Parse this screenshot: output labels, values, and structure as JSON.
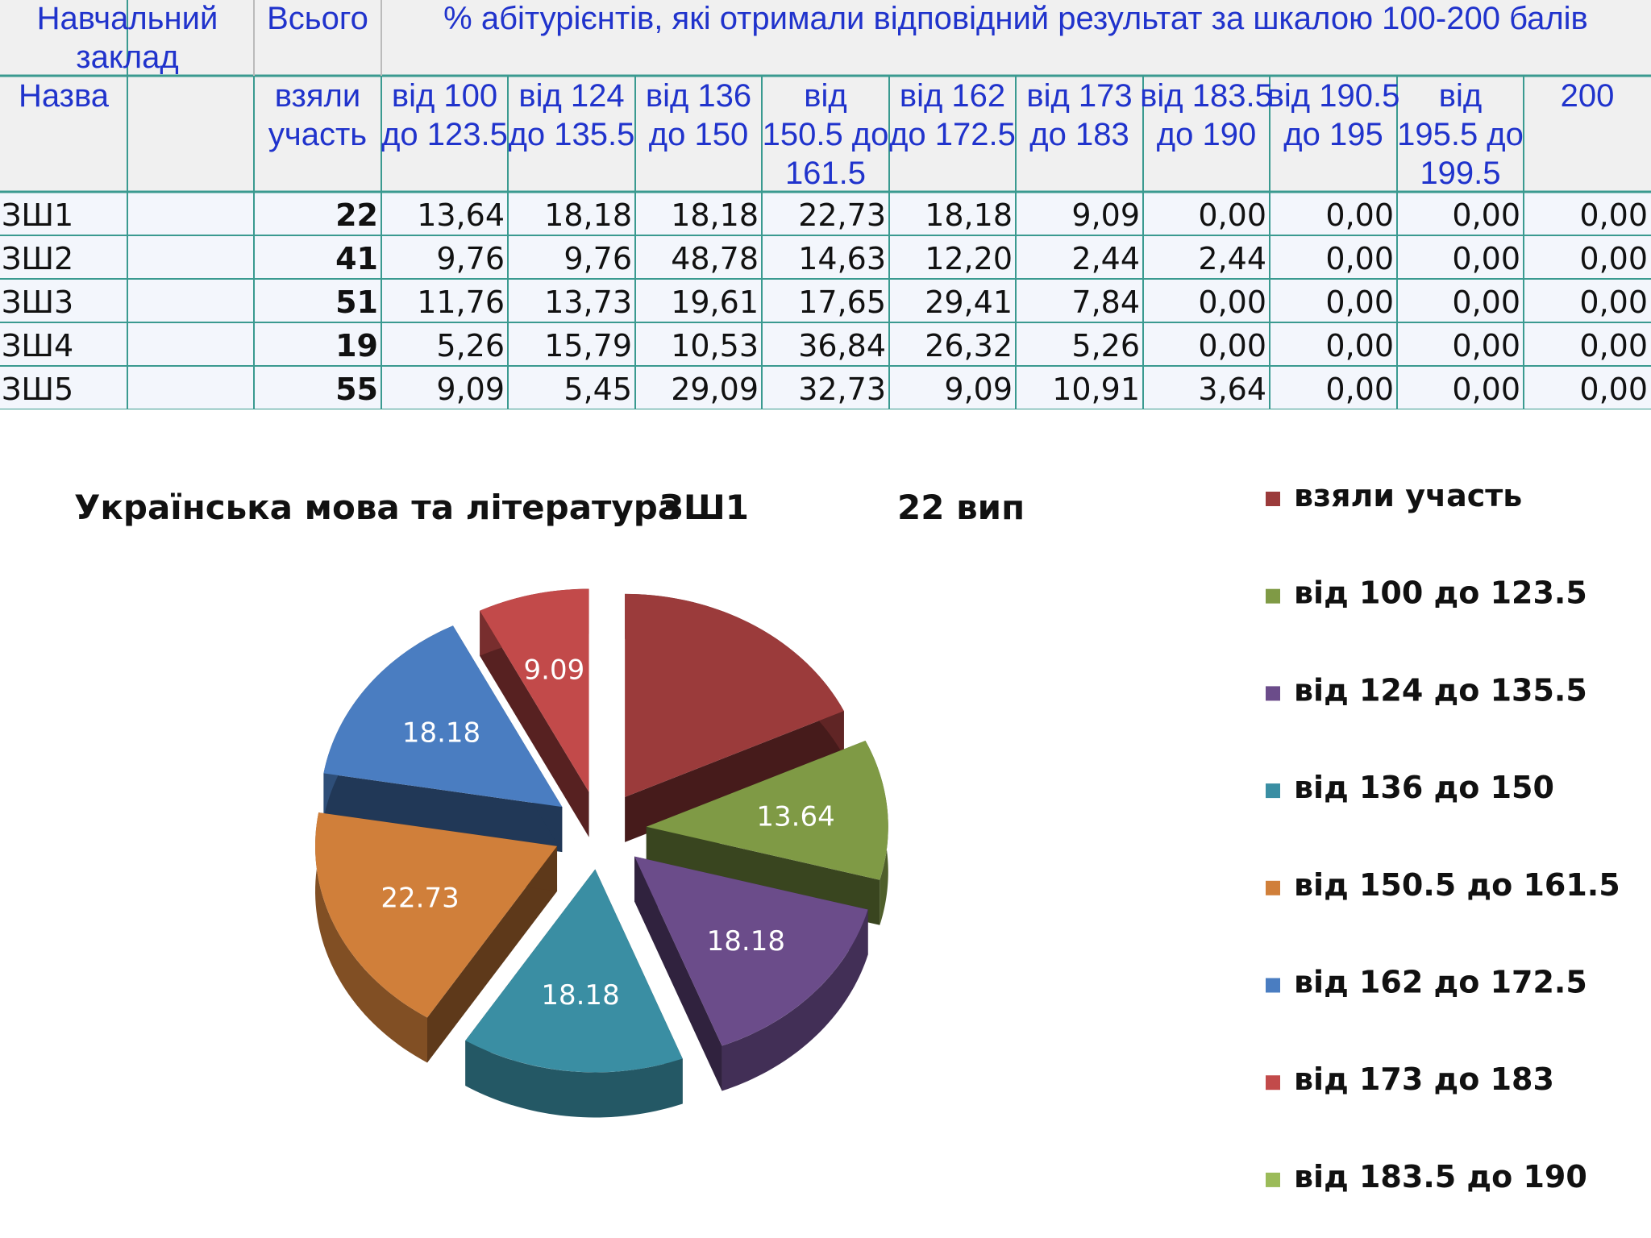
{
  "table": {
    "header": {
      "institution": "Навчальний заклад",
      "total": "Всього",
      "percent_caption": "% абітурієнтів, які отримали відповідний результат за шкалою 100-200 балів",
      "name": "Назва",
      "took_part": "взяли участь",
      "ranges": [
        "від 100 до 123.5",
        "від 124 до 135.5",
        "від 136 до 150",
        "від 150.5 до 161.5",
        "від 162 до 172.5",
        "від 173 до 183",
        "від 183.5 до 190",
        "від 190.5 до 195",
        "від 195.5 до 199.5",
        "200"
      ]
    },
    "rows": [
      {
        "name": "ЗШ1",
        "total": "22",
        "values": [
          "13,64",
          "18,18",
          "18,18",
          "22,73",
          "18,18",
          "9,09",
          "0,00",
          "0,00",
          "0,00",
          "0,00"
        ]
      },
      {
        "name": "ЗШ2",
        "total": "41",
        "values": [
          "9,76",
          "9,76",
          "48,78",
          "14,63",
          "12,20",
          "2,44",
          "2,44",
          "0,00",
          "0,00",
          "0,00"
        ]
      },
      {
        "name": "ЗШ3",
        "total": "51",
        "values": [
          "11,76",
          "13,73",
          "19,61",
          "17,65",
          "29,41",
          "7,84",
          "0,00",
          "0,00",
          "0,00",
          "0,00"
        ]
      },
      {
        "name": "ЗШ4",
        "total": "19",
        "values": [
          "5,26",
          "15,79",
          "10,53",
          "36,84",
          "26,32",
          "5,26",
          "0,00",
          "0,00",
          "0,00",
          "0,00"
        ]
      },
      {
        "name": "ЗШ5",
        "total": "55",
        "values": [
          "9,09",
          "5,45",
          "29,09",
          "32,73",
          "9,09",
          "10,91",
          "3,64",
          "0,00",
          "0,00",
          "0,00"
        ]
      }
    ]
  },
  "chart_data": {
    "type": "pie",
    "title_parts": [
      "Українська мова та література",
      "ЗШ1",
      "22 вип"
    ],
    "slices": [
      {
        "name": "взяли участь",
        "value": 22,
        "label": "",
        "color": "#9b3b3b"
      },
      {
        "name": "від 100 до 123.5",
        "value": 13.64,
        "label": "13.64",
        "color": "#7f9a45"
      },
      {
        "name": "від 124 до 135.5",
        "value": 18.18,
        "label": "18.18",
        "color": "#6b4c8a"
      },
      {
        "name": "від 136 до 150",
        "value": 18.18,
        "label": "18.18",
        "color": "#3a8ea3"
      },
      {
        "name": "від 150.5 до 161.5",
        "value": 22.73,
        "label": "22.73",
        "color": "#d07f3a"
      },
      {
        "name": "від 162 до 172.5",
        "value": 18.18,
        "label": "18.18",
        "color": "#4a7dc1"
      },
      {
        "name": "від 173 до 183",
        "value": 9.09,
        "label": "9.09",
        "color": "#c24a4a"
      },
      {
        "name": "від 183.5 до 190",
        "value": 0,
        "label": "",
        "color": "#9bbb59"
      }
    ],
    "legend_position": "right",
    "style": "3d exploded"
  }
}
